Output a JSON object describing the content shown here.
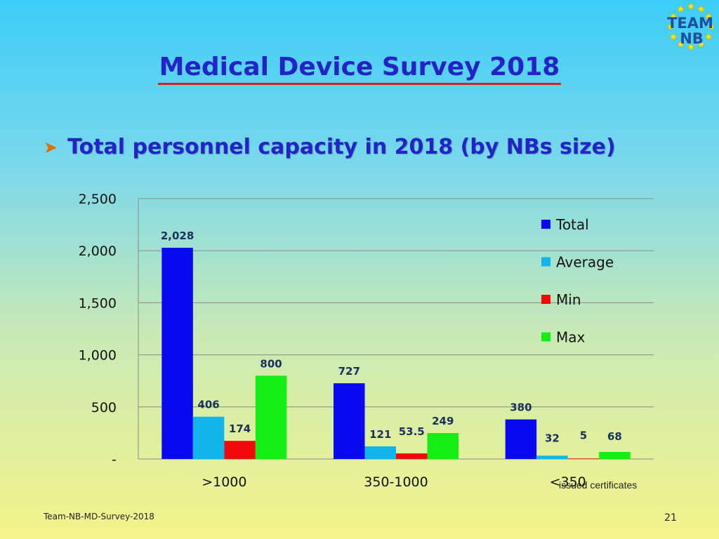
{
  "slide": {
    "title": "Medical Device Survey 2018",
    "bullet": "Total personnel capacity in 2018 (by NBs size)",
    "footer_left": "Team-NB-MD-Survey-2018",
    "page_number": "21",
    "note": "issued certificates",
    "logo_line1": "TEAM",
    "logo_line2": "NB"
  },
  "colors": {
    "total": "#0a0af0",
    "average": "#12b4ec",
    "min": "#f00a0a",
    "max": "#14ee14"
  },
  "chart_data": {
    "type": "bar",
    "title": "Total personnel capacity in 2018 (by NBs size)",
    "categories": [
      ">1000",
      "350-1000",
      "<350"
    ],
    "series": [
      {
        "name": "Total",
        "values": [
          2028,
          727,
          380
        ],
        "labels": [
          "2,028",
          "727",
          "380"
        ]
      },
      {
        "name": "Average",
        "values": [
          406,
          121,
          32
        ],
        "labels": [
          "406",
          "121",
          "32"
        ]
      },
      {
        "name": "Min",
        "values": [
          174,
          53.5,
          5
        ],
        "labels": [
          "174",
          "53.5",
          "5"
        ]
      },
      {
        "name": "Max",
        "values": [
          800,
          249,
          68
        ],
        "labels": [
          "800",
          "249",
          "68"
        ]
      }
    ],
    "yticks": [
      0,
      500,
      1000,
      1500,
      2000,
      2500
    ],
    "ytick_labels": [
      "-",
      "500",
      "1,000",
      "1,500",
      "2,000",
      "2,500"
    ],
    "ylim": [
      0,
      2500
    ],
    "grid": true,
    "legend_position": "right",
    "xlabel": "",
    "ylabel": ""
  }
}
